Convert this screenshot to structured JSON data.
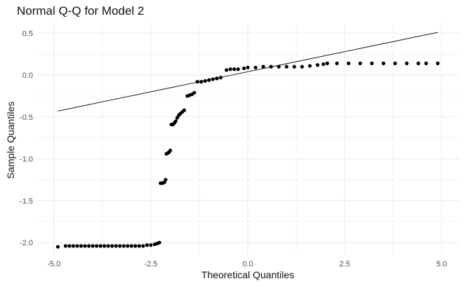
{
  "chart_data": {
    "type": "scatter",
    "title": "Normal Q-Q for Model 2",
    "xlabel": "Theoretical Quantiles",
    "ylabel": "Sample Quantiles",
    "xlim": [
      -5.45,
      5.45
    ],
    "ylim": [
      -2.15,
      0.62
    ],
    "x_ticks": [
      -5.0,
      -2.5,
      0.0,
      2.5,
      5.0
    ],
    "x_tick_labels": [
      "-5.0",
      "-2.5",
      "0.0",
      "2.5",
      "5.0"
    ],
    "y_ticks": [
      0.5,
      0.0,
      -0.5,
      -1.0,
      -1.5,
      -2.0
    ],
    "y_tick_labels": [
      "0.5",
      "0.0",
      "-0.5",
      "-1.0",
      "-1.5",
      "-2.0"
    ],
    "grid": true,
    "reference_line": {
      "x": [
        -4.9,
        4.9
      ],
      "y": [
        -0.43,
        0.51
      ]
    },
    "point_color": "#000000",
    "line_color": "#000000",
    "grid_color": "#ebebeb",
    "series": [
      {
        "points": [
          [
            -4.9,
            -2.05
          ],
          [
            -4.7,
            -2.04
          ],
          [
            -4.6,
            -2.04
          ],
          [
            -4.5,
            -2.04
          ],
          [
            -4.4,
            -2.04
          ],
          [
            -4.3,
            -2.04
          ],
          [
            -4.2,
            -2.04
          ],
          [
            -4.1,
            -2.04
          ],
          [
            -4.0,
            -2.04
          ],
          [
            -3.9,
            -2.04
          ],
          [
            -3.8,
            -2.04
          ],
          [
            -3.7,
            -2.04
          ],
          [
            -3.6,
            -2.04
          ],
          [
            -3.5,
            -2.04
          ],
          [
            -3.4,
            -2.04
          ],
          [
            -3.3,
            -2.04
          ],
          [
            -3.2,
            -2.04
          ],
          [
            -3.1,
            -2.04
          ],
          [
            -3.0,
            -2.04
          ],
          [
            -2.9,
            -2.04
          ],
          [
            -2.8,
            -2.04
          ],
          [
            -2.7,
            -2.04
          ],
          [
            -2.6,
            -2.03
          ],
          [
            -2.5,
            -2.03
          ],
          [
            -2.4,
            -2.02
          ],
          [
            -2.33,
            -2.01
          ],
          [
            -2.28,
            -2.0
          ],
          [
            -2.25,
            -1.29
          ],
          [
            -2.2,
            -1.29
          ],
          [
            -2.15,
            -1.28
          ],
          [
            -2.12,
            -1.25
          ],
          [
            -2.1,
            -0.94
          ],
          [
            -2.06,
            -0.93
          ],
          [
            -2.03,
            -0.92
          ],
          [
            -2.0,
            -0.9
          ],
          [
            -1.97,
            -0.59
          ],
          [
            -1.93,
            -0.59
          ],
          [
            -1.89,
            -0.57
          ],
          [
            -1.86,
            -0.55
          ],
          [
            -1.82,
            -0.51
          ],
          [
            -1.78,
            -0.48
          ],
          [
            -1.74,
            -0.46
          ],
          [
            -1.69,
            -0.44
          ],
          [
            -1.64,
            -0.42
          ],
          [
            -1.56,
            -0.25
          ],
          [
            -1.5,
            -0.24
          ],
          [
            -1.44,
            -0.23
          ],
          [
            -1.38,
            -0.21
          ],
          [
            -1.3,
            -0.08
          ],
          [
            -1.2,
            -0.08
          ],
          [
            -1.1,
            -0.07
          ],
          [
            -1.0,
            -0.06
          ],
          [
            -0.9,
            -0.05
          ],
          [
            -0.8,
            -0.04
          ],
          [
            -0.7,
            -0.03
          ],
          [
            -0.55,
            0.06
          ],
          [
            -0.45,
            0.07
          ],
          [
            -0.35,
            0.07
          ],
          [
            -0.25,
            0.07
          ],
          [
            -0.1,
            0.08
          ],
          [
            0.0,
            0.09
          ],
          [
            0.2,
            0.09
          ],
          [
            0.4,
            0.1
          ],
          [
            0.6,
            0.1
          ],
          [
            0.8,
            0.1
          ],
          [
            1.0,
            0.1
          ],
          [
            1.2,
            0.1
          ],
          [
            1.4,
            0.1
          ],
          [
            1.6,
            0.11
          ],
          [
            1.8,
            0.12
          ],
          [
            1.95,
            0.13
          ],
          [
            2.05,
            0.14
          ],
          [
            2.3,
            0.14
          ],
          [
            2.6,
            0.14
          ],
          [
            2.9,
            0.14
          ],
          [
            3.2,
            0.14
          ],
          [
            3.5,
            0.14
          ],
          [
            3.8,
            0.14
          ],
          [
            4.1,
            0.14
          ],
          [
            4.4,
            0.14
          ],
          [
            4.6,
            0.14
          ],
          [
            4.9,
            0.14
          ]
        ]
      }
    ]
  }
}
